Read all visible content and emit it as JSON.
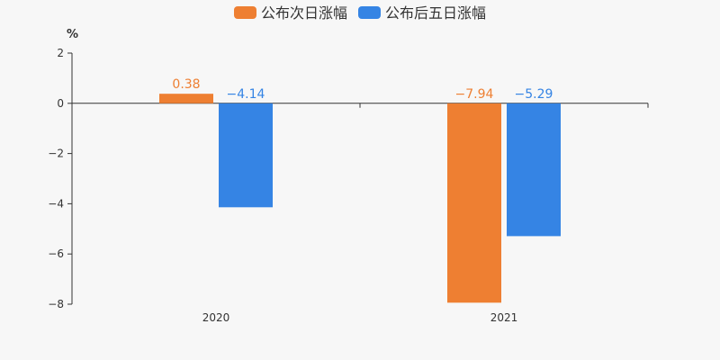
{
  "chart_data": {
    "type": "bar",
    "categories": [
      "2020",
      "2021"
    ],
    "series": [
      {
        "name": "公布次日涨幅",
        "color": "#ee7f32",
        "values": [
          0.38,
          -7.94
        ],
        "labels": [
          "0.38",
          "−7.94"
        ]
      },
      {
        "name": "公布后五日涨幅",
        "color": "#3584e4",
        "values": [
          -4.14,
          -5.29
        ],
        "labels": [
          "−4.14",
          "−5.29"
        ]
      }
    ],
    "yunit": "%",
    "ylim": [
      -8,
      2
    ],
    "yticks": [
      2,
      0,
      -2,
      -4,
      -6,
      -8
    ],
    "ytick_labels": [
      "2",
      "0",
      "−2",
      "−4",
      "−6",
      "−8"
    ],
    "legend_position": "top-center",
    "grid": false
  }
}
